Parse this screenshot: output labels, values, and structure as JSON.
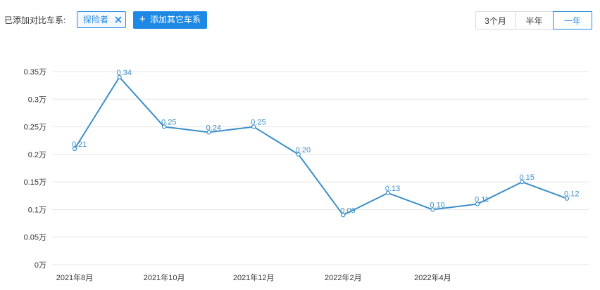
{
  "toolbar": {
    "compare_label": "已添加对比车系:",
    "series_tag": "探险者",
    "add_button": "添加其它车系",
    "ranges": [
      "3个月",
      "半年",
      "一年"
    ],
    "active_range": "一年"
  },
  "colors": {
    "accent": "#1e88e5",
    "line": "#3c8fc8",
    "grid": "#e6e6e6"
  },
  "chart_data": {
    "type": "line",
    "title": "",
    "xlabel": "",
    "ylabel": "",
    "y_unit": "万",
    "ylim": [
      0,
      0.35
    ],
    "y_ticks": [
      0,
      0.05,
      0.1,
      0.15,
      0.2,
      0.25,
      0.3,
      0.35
    ],
    "y_tick_labels": [
      "0万",
      "0.05万",
      "0.1万",
      "0.15万",
      "0.2万",
      "0.25万",
      "0.3万",
      "0.35万"
    ],
    "x_tick_labels": [
      "2021年8月",
      "2021年10月",
      "2021年12月",
      "2022年2月",
      "2022年4月"
    ],
    "x": [
      "2021-08",
      "2021-09",
      "2021-10",
      "2021-11",
      "2021-12",
      "2022-01",
      "2022-02",
      "2022-03",
      "2022-04",
      "2022-05",
      "2022-06",
      "2022-07"
    ],
    "series": [
      {
        "name": "探险者",
        "values": [
          0.21,
          0.34,
          0.25,
          0.24,
          0.25,
          0.2,
          0.09,
          0.13,
          0.1,
          0.11,
          0.15,
          0.12
        ],
        "labels": [
          "0.21",
          "0.34",
          "0.25",
          "0.24",
          "0.25",
          "0.20",
          "0.09",
          "0.13",
          "0.10",
          "0.11",
          "0.15",
          "0.12"
        ]
      }
    ],
    "grid": true
  }
}
